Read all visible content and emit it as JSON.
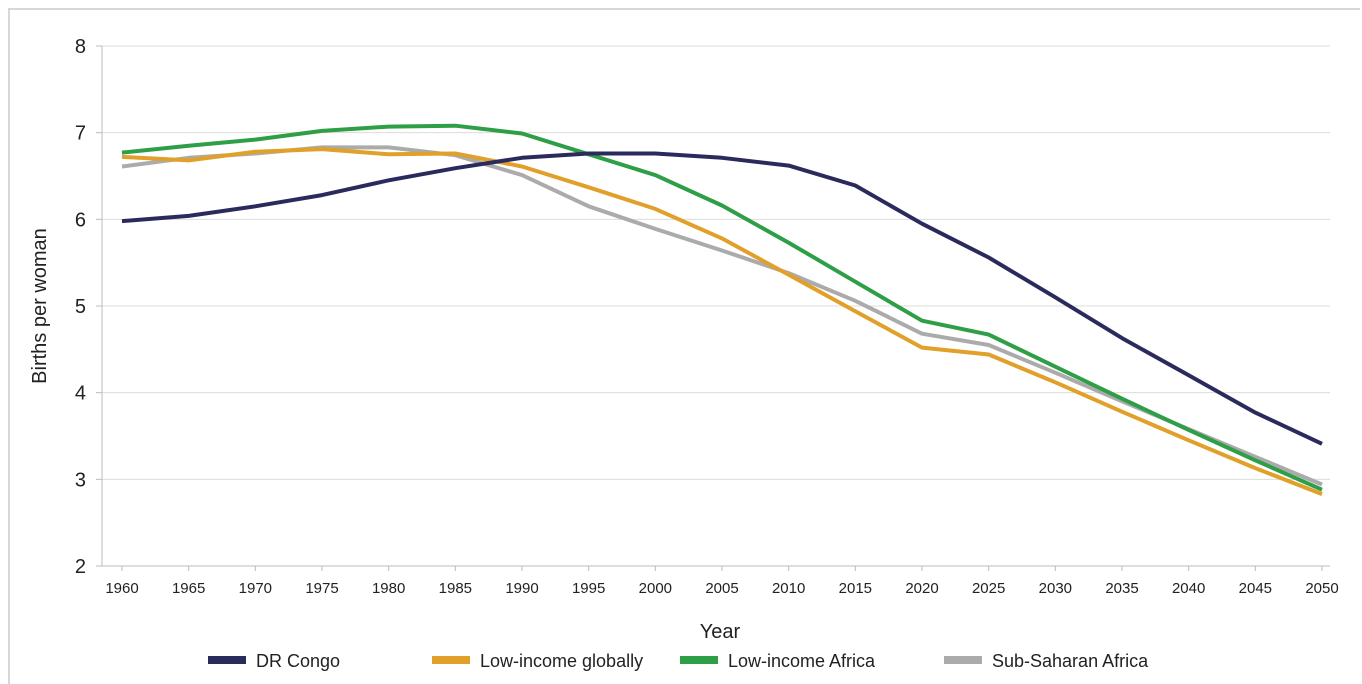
{
  "chart_data": {
    "type": "line",
    "xlabel": "Year",
    "ylabel": "Births per woman",
    "ylim": [
      2,
      8
    ],
    "yticks": [
      "2",
      "3",
      "4",
      "5",
      "6",
      "7",
      "8"
    ],
    "x": [
      "1960",
      "1965",
      "1970",
      "1975",
      "1980",
      "1985",
      "1990",
      "1995",
      "2000",
      "2005",
      "2010",
      "2015",
      "2020",
      "2025",
      "2030",
      "2035",
      "2040",
      "2045",
      "2050"
    ],
    "grid": true,
    "legend_position": "bottom",
    "series": [
      {
        "name": "DR Congo",
        "color": "#2b2a5c",
        "values": [
          5.98,
          6.04,
          6.15,
          6.28,
          6.45,
          6.59,
          6.71,
          6.76,
          6.76,
          6.71,
          6.62,
          6.39,
          5.95,
          5.56,
          5.1,
          4.63,
          4.2,
          3.77,
          3.41
        ]
      },
      {
        "name": "Low-income globally",
        "color": "#e0a02a",
        "values": [
          6.72,
          6.68,
          6.78,
          6.81,
          6.75,
          6.76,
          6.61,
          6.37,
          6.12,
          5.78,
          5.36,
          4.94,
          4.52,
          4.44,
          4.12,
          3.78,
          3.45,
          3.13,
          2.83
        ]
      },
      {
        "name": "Low-income Africa",
        "color": "#2e9e47",
        "values": [
          6.77,
          6.85,
          6.92,
          7.02,
          7.07,
          7.08,
          6.99,
          6.75,
          6.51,
          6.16,
          5.73,
          5.28,
          4.83,
          4.67,
          4.3,
          3.93,
          3.57,
          3.22,
          2.88
        ]
      },
      {
        "name": "Sub-Saharan Africa",
        "color": "#ababab",
        "values": [
          6.61,
          6.71,
          6.76,
          6.83,
          6.83,
          6.74,
          6.51,
          6.15,
          5.89,
          5.64,
          5.38,
          5.06,
          4.68,
          4.55,
          4.23,
          3.9,
          3.58,
          3.26,
          2.94
        ]
      }
    ]
  }
}
